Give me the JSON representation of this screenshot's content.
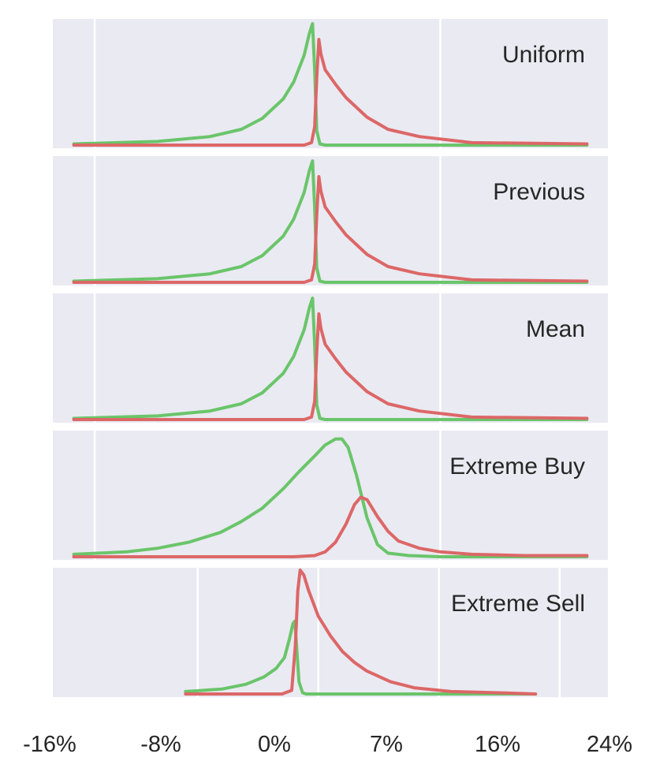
{
  "colors": {
    "green": "#6ac56a",
    "red": "#dc6767",
    "panel_bg": "#eaeaf2",
    "grid": "#ffffff"
  },
  "chart_data": {
    "type": "line",
    "layout": "5 vertically stacked density panels sharing a common x-axis",
    "x_tick_labels": [
      "-16%",
      "-8%",
      "0%",
      "7%",
      "16%",
      "24%"
    ],
    "grid": true,
    "legend": "none",
    "panels": [
      {
        "title": "Uniform",
        "xlim": [
          -25,
          28
        ],
        "gridlines_x": [
          -21,
          12
        ],
        "series": [
          {
            "color": "green",
            "points": [
              [
                -23,
                0.01
              ],
              [
                -15,
                0.03
              ],
              [
                -10,
                0.07
              ],
              [
                -7,
                0.13
              ],
              [
                -5,
                0.22
              ],
              [
                -3,
                0.38
              ],
              [
                -2,
                0.52
              ],
              [
                -1,
                0.74
              ],
              [
                -0.5,
                0.92
              ],
              [
                -0.2,
                1.0
              ],
              [
                0,
                0.62
              ],
              [
                0.2,
                0.12
              ],
              [
                0.5,
                0.01
              ],
              [
                1,
                0.0
              ],
              [
                26,
                0.0
              ]
            ]
          },
          {
            "color": "red",
            "points": [
              [
                -23,
                0.0
              ],
              [
                -1,
                0.0
              ],
              [
                -0.3,
                0.02
              ],
              [
                0,
                0.15
              ],
              [
                0.2,
                0.55
              ],
              [
                0.4,
                0.87
              ],
              [
                0.6,
                0.75
              ],
              [
                1,
                0.62
              ],
              [
                2,
                0.5
              ],
              [
                3,
                0.39
              ],
              [
                5,
                0.23
              ],
              [
                7,
                0.13
              ],
              [
                10,
                0.07
              ],
              [
                15,
                0.02
              ],
              [
                26,
                0.01
              ]
            ]
          }
        ]
      },
      {
        "title": "Previous",
        "xlim": [
          -25,
          28
        ],
        "gridlines_x": [
          -21,
          12
        ],
        "series": [
          {
            "color": "green",
            "points": [
              [
                -23,
                0.01
              ],
              [
                -15,
                0.03
              ],
              [
                -10,
                0.07
              ],
              [
                -7,
                0.13
              ],
              [
                -5,
                0.22
              ],
              [
                -3,
                0.38
              ],
              [
                -2,
                0.52
              ],
              [
                -1,
                0.74
              ],
              [
                -0.5,
                0.92
              ],
              [
                -0.2,
                1.0
              ],
              [
                0,
                0.62
              ],
              [
                0.2,
                0.12
              ],
              [
                0.5,
                0.01
              ],
              [
                1,
                0.0
              ],
              [
                26,
                0.0
              ]
            ]
          },
          {
            "color": "red",
            "points": [
              [
                -23,
                0.0
              ],
              [
                -1,
                0.0
              ],
              [
                -0.3,
                0.02
              ],
              [
                0,
                0.15
              ],
              [
                0.2,
                0.55
              ],
              [
                0.4,
                0.87
              ],
              [
                0.6,
                0.75
              ],
              [
                1,
                0.62
              ],
              [
                2,
                0.5
              ],
              [
                3,
                0.39
              ],
              [
                5,
                0.23
              ],
              [
                7,
                0.13
              ],
              [
                10,
                0.07
              ],
              [
                15,
                0.02
              ],
              [
                26,
                0.01
              ]
            ]
          }
        ]
      },
      {
        "title": "Mean",
        "xlim": [
          -25,
          28
        ],
        "gridlines_x": [
          -21,
          12
        ],
        "series": [
          {
            "color": "green",
            "points": [
              [
                -23,
                0.01
              ],
              [
                -15,
                0.03
              ],
              [
                -10,
                0.07
              ],
              [
                -7,
                0.13
              ],
              [
                -5,
                0.22
              ],
              [
                -3,
                0.38
              ],
              [
                -2,
                0.52
              ],
              [
                -1,
                0.74
              ],
              [
                -0.5,
                0.92
              ],
              [
                -0.2,
                1.0
              ],
              [
                0,
                0.62
              ],
              [
                0.2,
                0.12
              ],
              [
                0.5,
                0.01
              ],
              [
                1,
                0.0
              ],
              [
                26,
                0.0
              ]
            ]
          },
          {
            "color": "red",
            "points": [
              [
                -23,
                0.0
              ],
              [
                -1,
                0.0
              ],
              [
                -0.3,
                0.02
              ],
              [
                0,
                0.15
              ],
              [
                0.2,
                0.55
              ],
              [
                0.4,
                0.87
              ],
              [
                0.6,
                0.75
              ],
              [
                1,
                0.62
              ],
              [
                2,
                0.5
              ],
              [
                3,
                0.39
              ],
              [
                5,
                0.23
              ],
              [
                7,
                0.13
              ],
              [
                10,
                0.07
              ],
              [
                15,
                0.02
              ],
              [
                26,
                0.01
              ]
            ]
          }
        ]
      },
      {
        "title": "Extreme Buy",
        "xlim": [
          -25,
          28
        ],
        "gridlines_x": [
          -21,
          12
        ],
        "series": [
          {
            "color": "green",
            "points": [
              [
                -23,
                0.02
              ],
              [
                -18,
                0.04
              ],
              [
                -15,
                0.07
              ],
              [
                -12,
                0.12
              ],
              [
                -9,
                0.2
              ],
              [
                -7,
                0.29
              ],
              [
                -5,
                0.4
              ],
              [
                -3,
                0.56
              ],
              [
                -1.5,
                0.7
              ],
              [
                0,
                0.83
              ],
              [
                1,
                0.92
              ],
              [
                2,
                0.97
              ],
              [
                2.6,
                0.97
              ],
              [
                3.2,
                0.9
              ],
              [
                4,
                0.67
              ],
              [
                5,
                0.32
              ],
              [
                6,
                0.1
              ],
              [
                7,
                0.03
              ],
              [
                9,
                0.01
              ],
              [
                12,
                0.0
              ],
              [
                26,
                0.0
              ]
            ]
          },
          {
            "color": "red",
            "points": [
              [
                -23,
                0.0
              ],
              [
                -2,
                0.0
              ],
              [
                0,
                0.01
              ],
              [
                1,
                0.04
              ],
              [
                2,
                0.12
              ],
              [
                3,
                0.27
              ],
              [
                3.8,
                0.43
              ],
              [
                4.4,
                0.49
              ],
              [
                5,
                0.47
              ],
              [
                6,
                0.33
              ],
              [
                7,
                0.21
              ],
              [
                8,
                0.13
              ],
              [
                10,
                0.07
              ],
              [
                12,
                0.04
              ],
              [
                15,
                0.02
              ],
              [
                20,
                0.01
              ],
              [
                26,
                0.01
              ]
            ]
          }
        ]
      },
      {
        "title": "Extreme Sell",
        "xlim": [
          -22,
          24
        ],
        "gridlines_x": [
          -10,
          0,
          10,
          20
        ],
        "series": [
          {
            "color": "green",
            "points": [
              [
                -11,
                0.02
              ],
              [
                -8,
                0.04
              ],
              [
                -6,
                0.08
              ],
              [
                -4.5,
                0.14
              ],
              [
                -3.5,
                0.21
              ],
              [
                -2.8,
                0.3
              ],
              [
                -2.4,
                0.45
              ],
              [
                -2.1,
                0.58
              ],
              [
                -1.95,
                0.6
              ],
              [
                -1.8,
                0.4
              ],
              [
                -1.6,
                0.1
              ],
              [
                -1.3,
                0.01
              ],
              [
                -1,
                0.0
              ],
              [
                18,
                0.0
              ]
            ]
          },
          {
            "color": "red",
            "points": [
              [
                -11,
                0.0
              ],
              [
                -3,
                0.0
              ],
              [
                -2.2,
                0.03
              ],
              [
                -1.9,
                0.4
              ],
              [
                -1.7,
                0.85
              ],
              [
                -1.5,
                1.02
              ],
              [
                -1.2,
                0.98
              ],
              [
                -0.8,
                0.85
              ],
              [
                0,
                0.64
              ],
              [
                1,
                0.48
              ],
              [
                2,
                0.35
              ],
              [
                3,
                0.26
              ],
              [
                4,
                0.19
              ],
              [
                6,
                0.1
              ],
              [
                8,
                0.05
              ],
              [
                11,
                0.02
              ],
              [
                15,
                0.01
              ],
              [
                18,
                0.0
              ]
            ]
          }
        ]
      }
    ]
  }
}
